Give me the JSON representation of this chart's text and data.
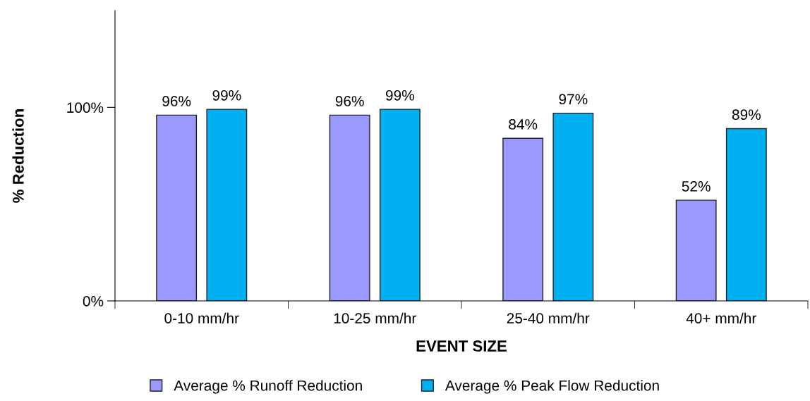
{
  "chart_data": {
    "type": "bar",
    "xlabel": "EVENT SIZE",
    "ylabel": "% Reduction",
    "categories": [
      "0-10 mm/hr",
      "10-25 mm/hr",
      "25-40 mm/hr",
      "40+ mm/hr"
    ],
    "series": [
      {
        "name": "Average % Runoff Reduction",
        "color": "#9999ff",
        "values": [
          96,
          96,
          84,
          52
        ],
        "value_labels": [
          "96%",
          "96%",
          "84%",
          "52%"
        ]
      },
      {
        "name": "Average % Peak Flow Reduction",
        "color": "#00b0f0",
        "values": [
          99,
          99,
          97,
          89
        ],
        "value_labels": [
          "99%",
          "99%",
          "97%",
          "89%"
        ]
      }
    ],
    "ylim": [
      0,
      150
    ],
    "yticks": [
      {
        "value": 0,
        "label": "0%"
      },
      {
        "value": 100,
        "label": "100%"
      }
    ],
    "grid": false,
    "legend": "bottom"
  }
}
